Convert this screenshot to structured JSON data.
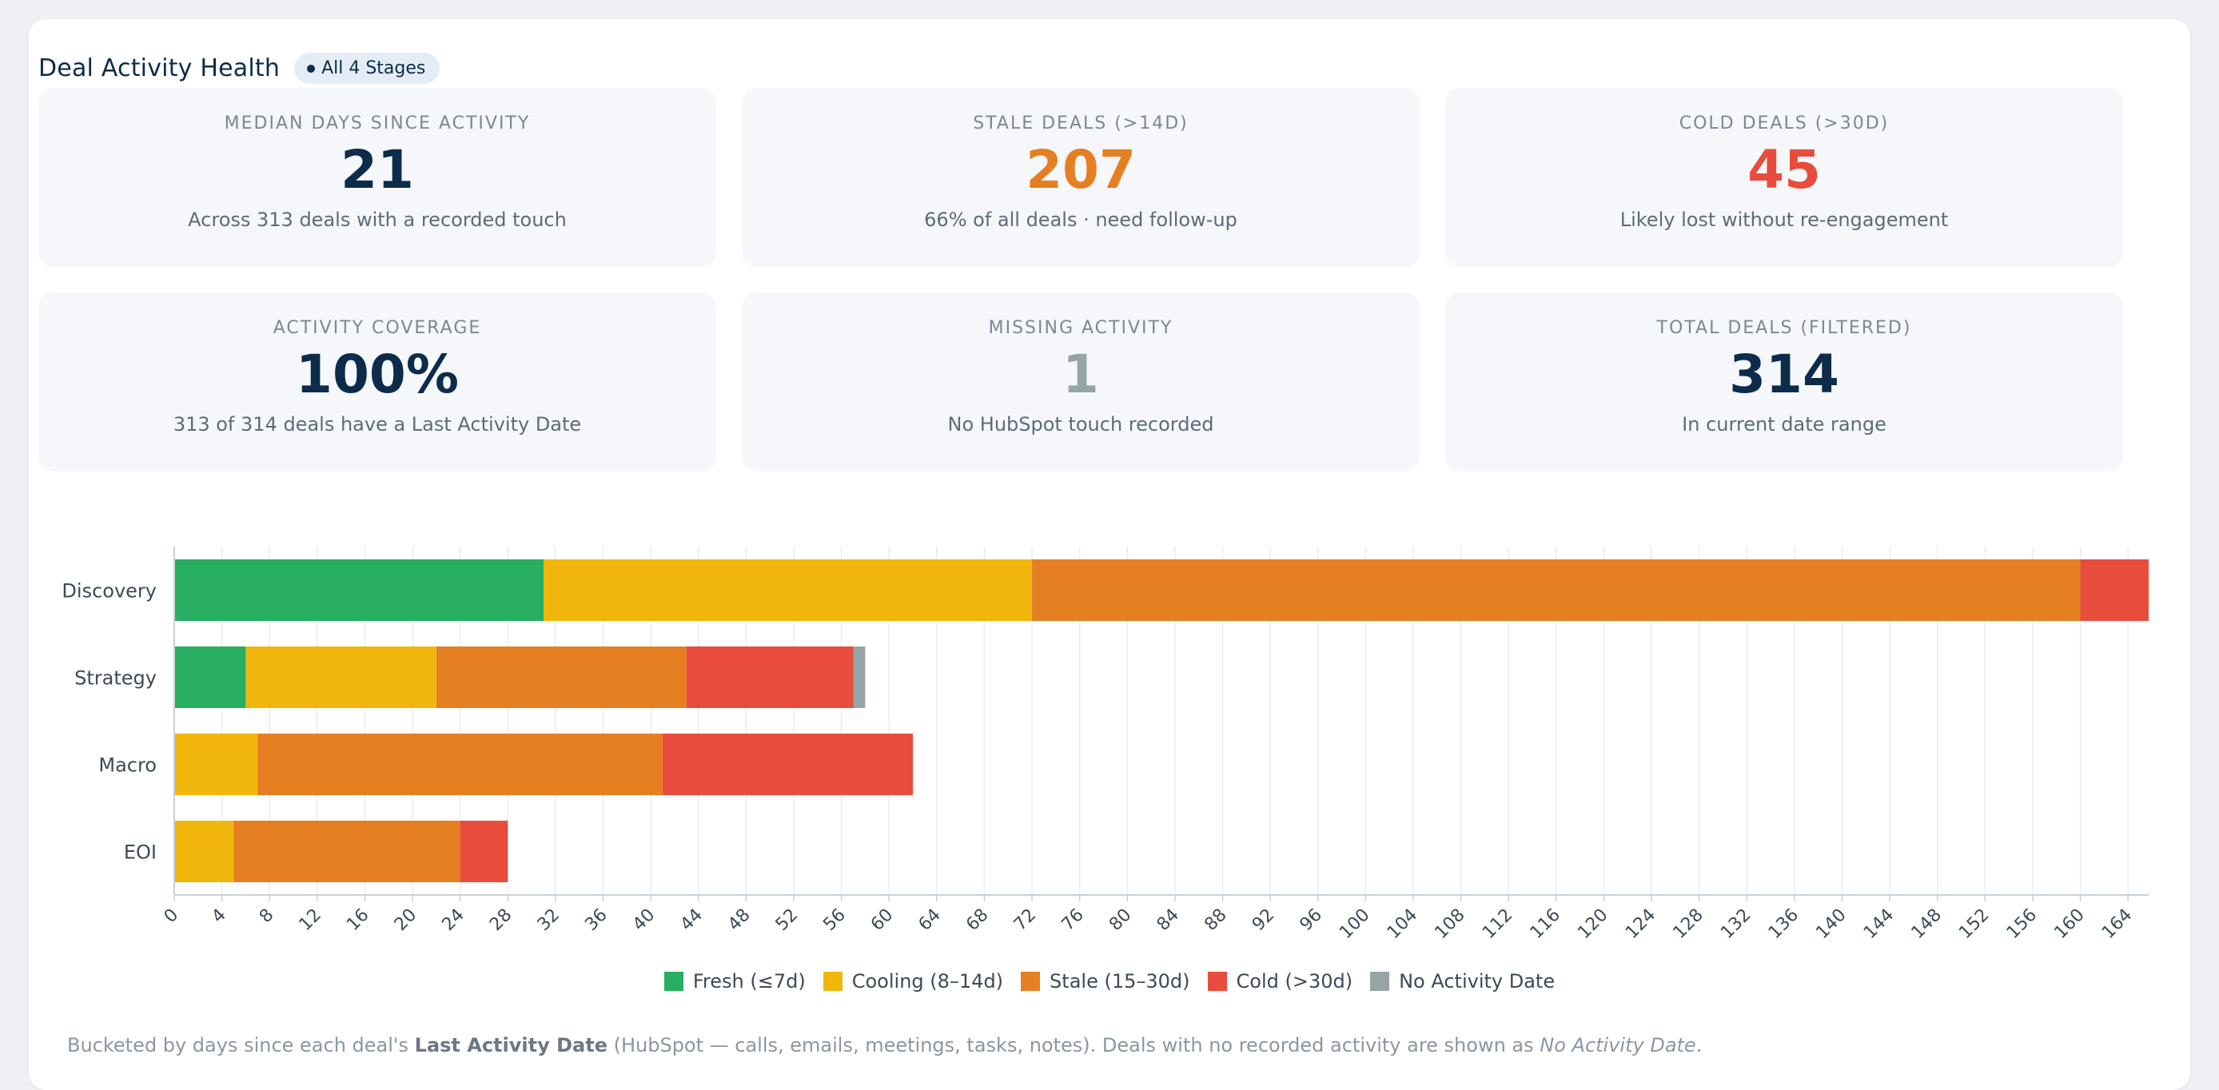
{
  "header": {
    "title": "Deal Activity Health",
    "badge": "All 4 Stages"
  },
  "kpis": [
    {
      "label": "Median Days Since Activity",
      "value": "21",
      "sub": "Across 313 deals with a recorded touch",
      "color": "#0d2b4a"
    },
    {
      "label": "Stale Deals (>14d)",
      "value": "207",
      "sub": "66% of all deals · need follow-up",
      "color": "#e67e22"
    },
    {
      "label": "Cold Deals (>30d)",
      "value": "45",
      "sub": "Likely lost without re-engagement",
      "color": "#e74c3c"
    },
    {
      "label": "Activity Coverage",
      "value": "100%",
      "sub": "313 of 314 deals have a Last Activity Date",
      "color": "#0d2b4a"
    },
    {
      "label": "Missing Activity",
      "value": "1",
      "sub": "No HubSpot touch recorded",
      "color": "#95a5a6"
    },
    {
      "label": "Total Deals (Filtered)",
      "value": "314",
      "sub": "In current date range",
      "color": "#0d2b4a"
    }
  ],
  "chart_data": {
    "type": "bar",
    "orientation": "horizontal",
    "stacked": true,
    "categories": [
      "Discovery",
      "Strategy",
      "Macro",
      "EOI"
    ],
    "series": [
      {
        "name": "Fresh (≤7d)",
        "color": "#27ae60",
        "values": [
          31,
          6,
          0,
          0
        ]
      },
      {
        "name": "Cooling (8–14d)",
        "color": "#f1b60c",
        "values": [
          41,
          16,
          7,
          5
        ]
      },
      {
        "name": "Stale (15–30d)",
        "color": "#e67e22",
        "values": [
          88,
          21,
          34,
          19
        ]
      },
      {
        "name": "Cold (>30d)",
        "color": "#e74c3c",
        "values": [
          6,
          14,
          21,
          4
        ]
      },
      {
        "name": "No Activity Date",
        "color": "#95a5a6",
        "values": [
          0,
          1,
          0,
          0
        ]
      }
    ],
    "xlim": [
      0,
      166
    ],
    "x_ticks": [
      0,
      4,
      8,
      12,
      16,
      20,
      24,
      28,
      32,
      36,
      40,
      44,
      48,
      52,
      56,
      60,
      64,
      68,
      72,
      76,
      80,
      84,
      88,
      92,
      96,
      100,
      104,
      108,
      112,
      116,
      120,
      124,
      128,
      132,
      136,
      140,
      144,
      148,
      152,
      156,
      160,
      164
    ],
    "grid": true,
    "legend_position": "bottom"
  },
  "footnote": {
    "part1": "Bucketed by days since each deal's ",
    "bold": "Last Activity Date",
    "part2": " (HubSpot — calls, emails, meetings, tasks, notes). Deals with no recorded activity are shown as ",
    "italic": "No Activity Date",
    "part3": "."
  }
}
